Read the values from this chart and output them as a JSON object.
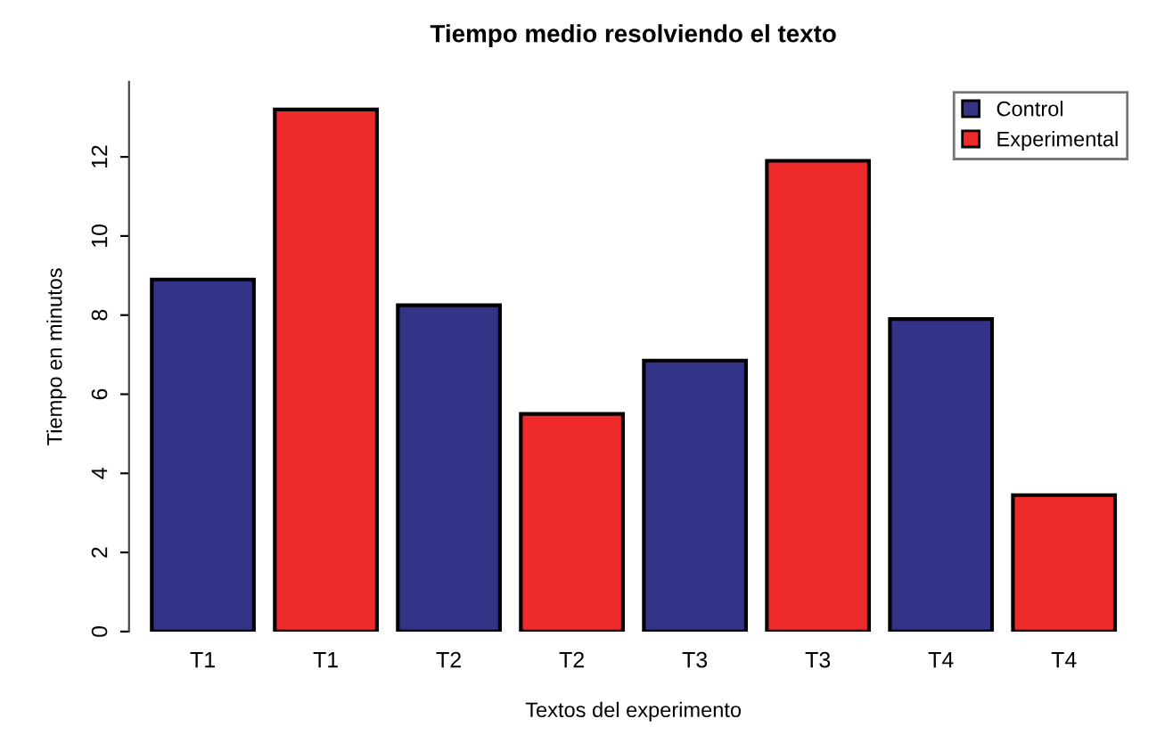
{
  "chart_data": {
    "type": "bar",
    "title": "Tiempo medio resolviendo el texto",
    "xlabel": "Textos del experimento",
    "ylabel": "Tiempo en minutos",
    "categories": [
      "T1",
      "T1",
      "T2",
      "T2",
      "T3",
      "T3",
      "T4",
      "T4"
    ],
    "series": [
      {
        "name": "Control",
        "color": "#333388",
        "values": [
          8.9,
          null,
          8.25,
          null,
          6.85,
          null,
          7.9,
          null
        ]
      },
      {
        "name": "Experimental",
        "color": "#ee2a2a",
        "values": [
          null,
          13.2,
          null,
          5.5,
          null,
          11.9,
          null,
          3.45
        ]
      }
    ],
    "ylim": [
      0,
      13.9
    ],
    "yticks": [
      0,
      2,
      4,
      6,
      8,
      10,
      12
    ],
    "grid": false,
    "legend": "top right"
  }
}
